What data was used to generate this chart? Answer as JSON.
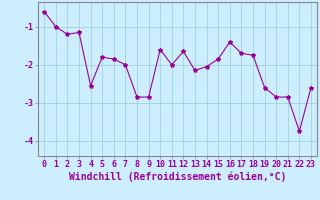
{
  "x": [
    0,
    1,
    2,
    3,
    4,
    5,
    6,
    7,
    8,
    9,
    10,
    11,
    12,
    13,
    14,
    15,
    16,
    17,
    18,
    19,
    20,
    21,
    22,
    23
  ],
  "y": [
    -0.6,
    -1.0,
    -1.2,
    -1.15,
    -2.55,
    -1.8,
    -1.85,
    -2.0,
    -2.85,
    -2.85,
    -1.6,
    -2.0,
    -1.65,
    -2.15,
    -2.05,
    -1.85,
    -1.4,
    -1.7,
    -1.75,
    -2.6,
    -2.85,
    -2.85,
    -3.75,
    -2.6
  ],
  "line_color": "#990099",
  "marker": "*",
  "marker_size": 3,
  "background_color": "#cceeff",
  "grid_color": "#99cccc",
  "xlabel": "Windchill (Refroidissement éolien,°C)",
  "xlabel_fontsize": 7,
  "tick_fontsize": 6,
  "ylim": [
    -4.4,
    -0.35
  ],
  "xlim": [
    -0.5,
    23.5
  ],
  "yticks": [
    -4,
    -3,
    -2,
    -1
  ],
  "xticks": [
    0,
    1,
    2,
    3,
    4,
    5,
    6,
    7,
    8,
    9,
    10,
    11,
    12,
    13,
    14,
    15,
    16,
    17,
    18,
    19,
    20,
    21,
    22,
    23
  ]
}
